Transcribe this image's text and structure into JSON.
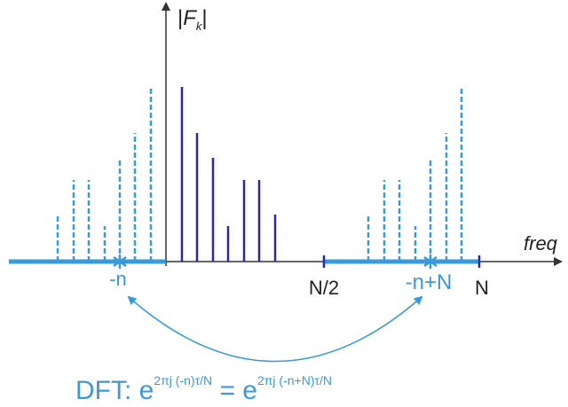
{
  "y_axis": {
    "open": "|",
    "base": "F",
    "sub": "k",
    "close": "|"
  },
  "x_axis": {
    "label": "freq"
  },
  "markers": {
    "minus_n": "-n",
    "half": "N/2",
    "shifted": "-n+N",
    "end": "N"
  },
  "formula": {
    "prefix": "DFT: e",
    "left_exp": "2πj (-n)τ/N",
    "middle": " = e",
    "right_exp": "2πj (-n+N)τ/N"
  }
}
